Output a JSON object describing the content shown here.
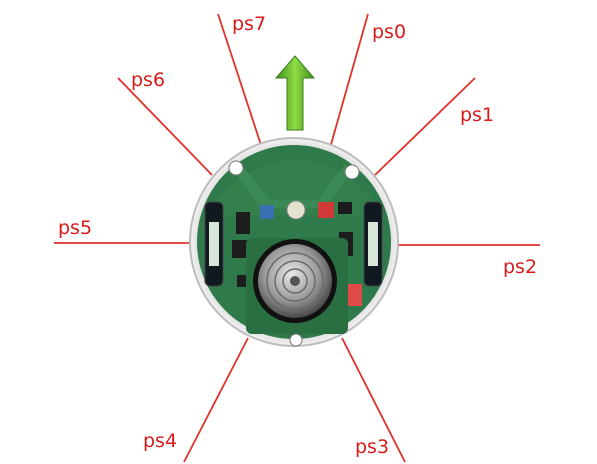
{
  "sensors": [
    {
      "id": "ps0",
      "label": "ps0"
    },
    {
      "id": "ps1",
      "label": "ps1"
    },
    {
      "id": "ps2",
      "label": "ps2"
    },
    {
      "id": "ps3",
      "label": "ps3"
    },
    {
      "id": "ps4",
      "label": "ps4"
    },
    {
      "id": "ps5",
      "label": "ps5"
    },
    {
      "id": "ps6",
      "label": "ps6"
    },
    {
      "id": "ps7",
      "label": "ps7"
    }
  ],
  "colors": {
    "sensor_line": "#e0302a",
    "sensor_label": "#d81a1a",
    "arrow": "#5cb82e",
    "pcb": "#2f7a4a",
    "shell": "#d9d9d9"
  },
  "icons": {
    "direction": "forward-arrow-icon",
    "robot": "e-puck-robot-icon"
  }
}
